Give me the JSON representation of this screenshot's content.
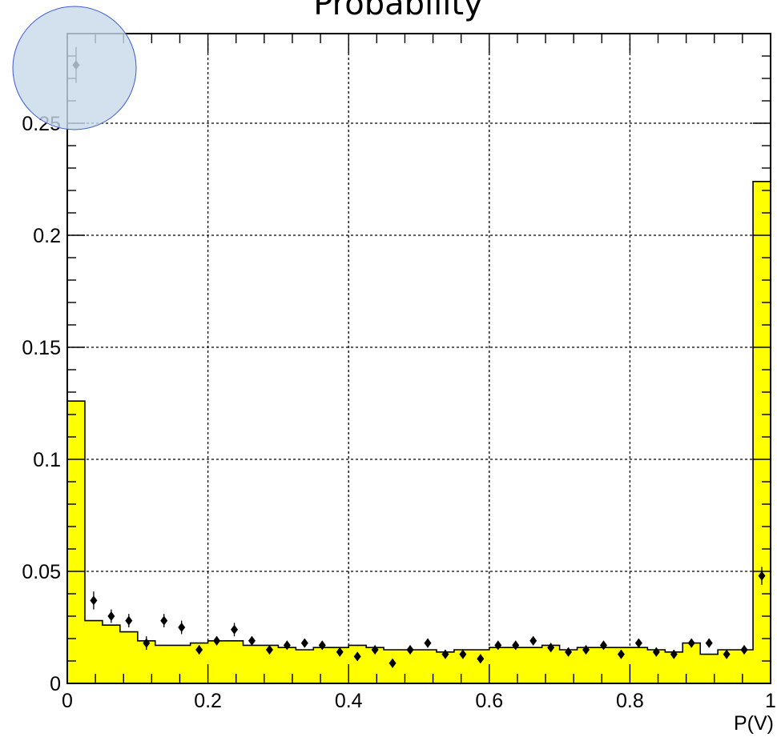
{
  "chart_data": {
    "type": "bar",
    "title": "Probability",
    "xlabel": "P(V)",
    "ylabel": "",
    "xlim": [
      0,
      1
    ],
    "ylim": [
      0,
      0.29
    ],
    "grid": true,
    "x_ticks": [
      0,
      0.2,
      0.4,
      0.6,
      0.8,
      1
    ],
    "x_tick_labels": [
      "0",
      "0.2",
      "0.4",
      "0.6",
      "0.8",
      "1"
    ],
    "y_ticks": [
      0,
      0.05,
      0.1,
      0.15,
      0.2,
      0.25
    ],
    "y_tick_labels": [
      "0",
      "0.05",
      "0.1",
      "0.15",
      "0.2",
      "0.25"
    ],
    "bin_edges": [
      0,
      0.025,
      0.05,
      0.075,
      0.1,
      0.125,
      0.15,
      0.175,
      0.2,
      0.225,
      0.25,
      0.275,
      0.3,
      0.325,
      0.35,
      0.375,
      0.4,
      0.425,
      0.45,
      0.475,
      0.5,
      0.525,
      0.55,
      0.575,
      0.6,
      0.625,
      0.65,
      0.675,
      0.7,
      0.725,
      0.75,
      0.775,
      0.8,
      0.825,
      0.85,
      0.875,
      0.9,
      0.925,
      0.95,
      0.975,
      1
    ],
    "series": [
      {
        "kind": "histogram",
        "color": "#ffff00",
        "values": [
          0.126,
          0.028,
          0.026,
          0.023,
          0.019,
          0.017,
          0.017,
          0.018,
          0.019,
          0.019,
          0.017,
          0.017,
          0.016,
          0.015,
          0.016,
          0.016,
          0.017,
          0.016,
          0.015,
          0.015,
          0.015,
          0.014,
          0.015,
          0.015,
          0.016,
          0.016,
          0.016,
          0.017,
          0.015,
          0.016,
          0.016,
          0.016,
          0.016,
          0.015,
          0.014,
          0.018,
          0.013,
          0.015,
          0.015,
          0.224
        ]
      },
      {
        "kind": "points",
        "color": "#000000",
        "x": [
          0.0125,
          0.0375,
          0.0625,
          0.0875,
          0.1125,
          0.1375,
          0.1625,
          0.1875,
          0.2125,
          0.2375,
          0.2625,
          0.2875,
          0.3125,
          0.3375,
          0.3625,
          0.3875,
          0.4125,
          0.4375,
          0.4625,
          0.4875,
          0.5125,
          0.5375,
          0.5625,
          0.5875,
          0.6125,
          0.6375,
          0.6625,
          0.6875,
          0.7125,
          0.7375,
          0.7625,
          0.7875,
          0.8125,
          0.8375,
          0.8625,
          0.8875,
          0.9125,
          0.9375,
          0.9625,
          0.9875
        ],
        "y": [
          0.276,
          0.037,
          0.03,
          0.028,
          0.018,
          0.028,
          0.025,
          0.015,
          0.019,
          0.024,
          0.019,
          0.015,
          0.017,
          0.018,
          0.017,
          0.014,
          0.012,
          0.015,
          0.009,
          0.015,
          0.018,
          0.013,
          0.013,
          0.011,
          0.017,
          0.017,
          0.019,
          0.016,
          0.014,
          0.015,
          0.017,
          0.013,
          0.018,
          0.014,
          0.013,
          0.018,
          0.018,
          0.013,
          0.015,
          0.048
        ],
        "err": [
          0.008,
          0.004,
          0.003,
          0.003,
          0.003,
          0.003,
          0.003,
          0.002,
          0.002,
          0.003,
          0.002,
          0.002,
          0.002,
          0.002,
          0.002,
          0.002,
          0.002,
          0.002,
          0.002,
          0.002,
          0.002,
          0.002,
          0.002,
          0.002,
          0.002,
          0.002,
          0.002,
          0.002,
          0.002,
          0.002,
          0.002,
          0.002,
          0.002,
          0.002,
          0.002,
          0.002,
          0.002,
          0.002,
          0.002,
          0.004
        ]
      }
    ]
  },
  "overlay": {
    "fill": "#c8d8ea",
    "stroke": "#3b5bd6"
  }
}
